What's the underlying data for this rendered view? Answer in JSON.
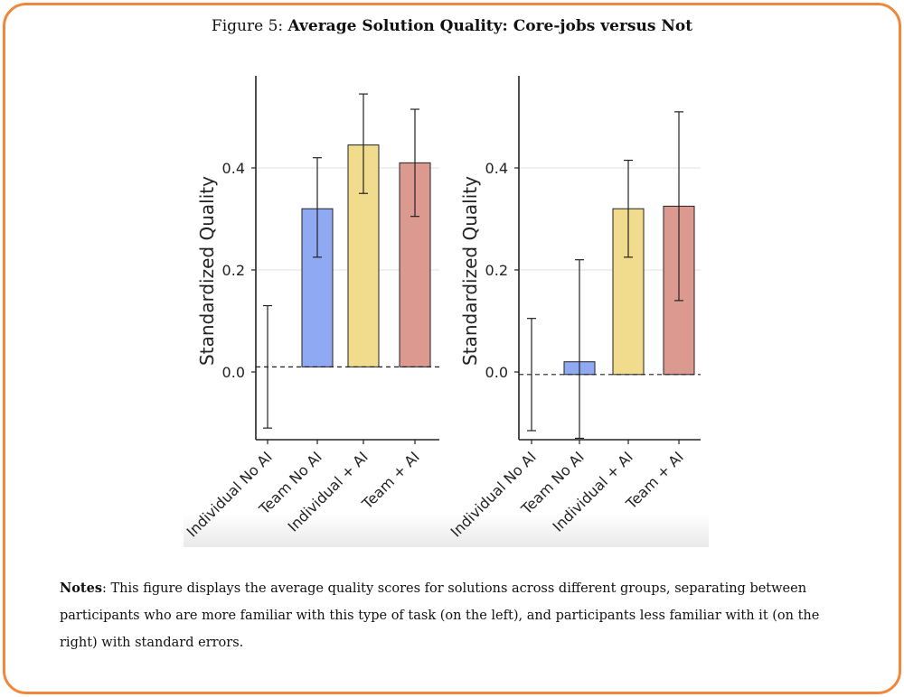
{
  "figure": {
    "label": "Figure 5:",
    "title": "Average Solution Quality: Core-jobs versus Not"
  },
  "notes": {
    "label": "Notes",
    "text": ": This figure displays the average quality scores for solutions across different groups, separating between participants who are more familiar with this type of task (on the left), and participants less familiar with it (on the right) with standard errors."
  },
  "chart_data": [
    {
      "type": "bar",
      "panel": "left",
      "ylabel": "Standardized Quality",
      "ylim": [
        -0.13,
        0.59
      ],
      "yticks": [
        0.0,
        0.2,
        0.4
      ],
      "ytick_labels": [
        "0.0",
        "0.2",
        "0.4"
      ],
      "baseline": 0.01,
      "categories": [
        "Individual No AI",
        "Team No AI",
        "Individual + AI",
        "Team + AI"
      ],
      "values": [
        0.01,
        0.32,
        0.445,
        0.41
      ],
      "err_low": [
        -0.11,
        0.225,
        0.35,
        0.305
      ],
      "err_high": [
        0.13,
        0.42,
        0.545,
        0.515
      ],
      "colors": [
        "#ffffff",
        "#8faaf2",
        "#f0dc8c",
        "#dc9990"
      ]
    },
    {
      "type": "bar",
      "panel": "right",
      "ylabel": "Standardized Quality",
      "ylim": [
        -0.13,
        0.59
      ],
      "yticks": [
        0.0,
        0.2,
        0.4
      ],
      "ytick_labels": [
        "0.0",
        "0.2",
        "0.4"
      ],
      "baseline": -0.005,
      "categories": [
        "Individual No AI",
        "Team No AI",
        "Individual + AI",
        "Team + AI"
      ],
      "values": [
        -0.005,
        0.02,
        0.32,
        0.325
      ],
      "err_low": [
        -0.115,
        -0.13,
        0.225,
        0.14
      ],
      "err_high": [
        0.105,
        0.22,
        0.415,
        0.51
      ],
      "colors": [
        "#ffffff",
        "#8faaf2",
        "#f0dc8c",
        "#dc9990"
      ]
    }
  ]
}
